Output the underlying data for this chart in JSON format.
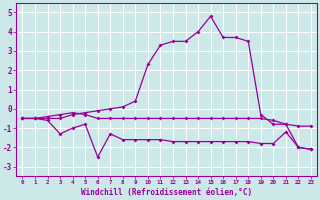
{
  "hours": [
    0,
    1,
    2,
    3,
    4,
    5,
    6,
    7,
    8,
    9,
    10,
    11,
    12,
    13,
    14,
    15,
    16,
    17,
    18,
    19,
    20,
    21,
    22,
    23
  ],
  "line1": [
    -0.5,
    -0.5,
    -0.5,
    -0.5,
    -0.3,
    -0.2,
    -0.1,
    0.0,
    0.1,
    0.4,
    2.3,
    3.3,
    3.5,
    3.5,
    4.0,
    4.8,
    3.7,
    3.7,
    3.5,
    -0.3,
    -0.8,
    -0.8,
    -2.0,
    -2.1
  ],
  "line2": [
    -0.5,
    -0.5,
    -0.4,
    -0.3,
    -0.2,
    -0.3,
    -0.5,
    -0.5,
    -0.5,
    -0.5,
    -0.5,
    -0.5,
    -0.5,
    -0.5,
    -0.5,
    -0.5,
    -0.5,
    -0.5,
    -0.5,
    -0.5,
    -0.6,
    -0.8,
    -0.9,
    -0.9
  ],
  "line3": [
    -0.5,
    -0.5,
    -0.6,
    -1.3,
    -1.0,
    -0.8,
    -2.5,
    -1.3,
    -1.6,
    -1.6,
    -1.6,
    -1.6,
    -1.7,
    -1.7,
    -1.7,
    -1.7,
    -1.7,
    -1.7,
    -1.7,
    -1.8,
    -1.8,
    -1.2,
    -2.0,
    -2.1
  ],
  "color": "#990099",
  "bg_color": "#cce8e8",
  "grid_color": "#aacccc",
  "xlabel": "Windchill (Refroidissement éolien,°C)",
  "ylim": [
    -3.5,
    5.5
  ],
  "xlim": [
    -0.5,
    23.5
  ],
  "yticks": [
    -3,
    -2,
    -1,
    0,
    1,
    2,
    3,
    4,
    5
  ],
  "xticks": [
    0,
    1,
    2,
    3,
    4,
    5,
    6,
    7,
    8,
    9,
    10,
    11,
    12,
    13,
    14,
    15,
    16,
    17,
    18,
    19,
    20,
    21,
    22,
    23
  ],
  "xtick_labels": [
    "0",
    "1",
    "2",
    "3",
    "4",
    "5",
    "6",
    "7",
    "8",
    "9",
    "10",
    "11",
    "12",
    "13",
    "14",
    "15",
    "16",
    "17",
    "18",
    "19",
    "20",
    "21",
    "22",
    "23"
  ]
}
